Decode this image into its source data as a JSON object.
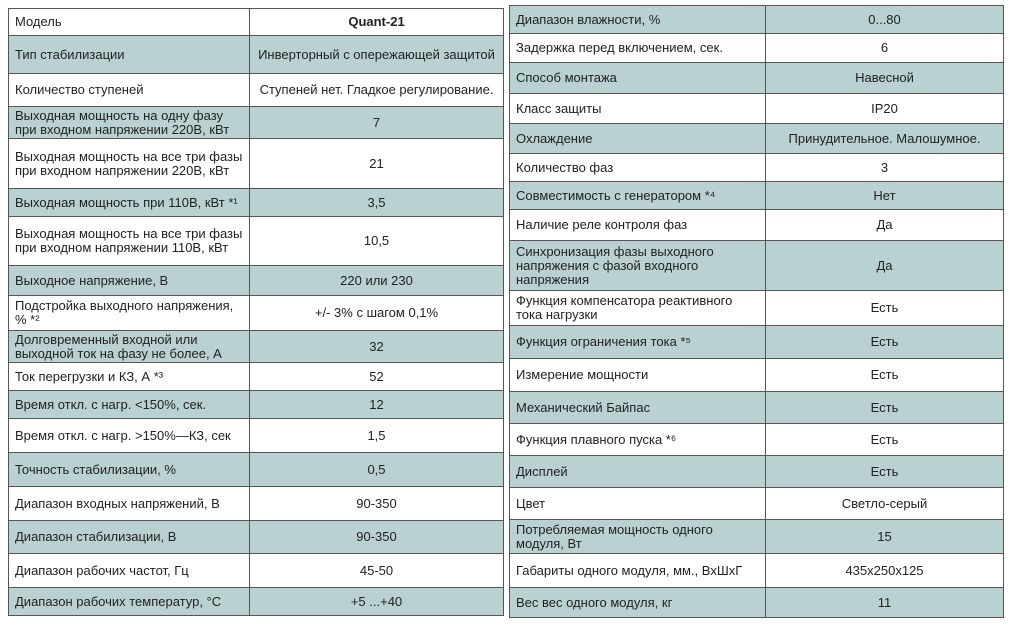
{
  "left": {
    "rows": [
      [
        "Модель",
        "Quant-21"
      ],
      [
        "Тип стабилизации",
        "Инверторный с опережающей защитой"
      ],
      [
        "Количество ступеней",
        "Ступеней нет. Гладкое регулирование."
      ],
      [
        "Выходная мощность на одну фазу при входном напряжении 220В, кВт",
        "7"
      ],
      [
        "Выходная мощность на все три фазы при входном напряжении 220В, кВт",
        "21"
      ],
      [
        "Выходная мощность при 110В, кВт *¹",
        "3,5"
      ],
      [
        "Выходная мощность на все три фазы при входном напряжении 110В, кВт",
        "10,5"
      ],
      [
        "Выходное напряжение, В",
        "220 или 230"
      ],
      [
        "Подстройка выходного напряжения, % *²",
        "+/- 3% с шагом 0,1%"
      ],
      [
        "Долговременный входной или выходной ток на фазу не более, А",
        "32"
      ],
      [
        "Ток перегрузки и КЗ, А *³",
        "52"
      ],
      [
        "Время откл. с нагр. <150%, сек.",
        "12"
      ],
      [
        "Время откл. с нагр. >150%—КЗ, сек",
        "1,5"
      ],
      [
        "Точность стабилизации, %",
        "0,5"
      ],
      [
        "Диапазон входных напряжений, В",
        "90-350"
      ],
      [
        "Диапазон стабилизации, В",
        "90-350"
      ],
      [
        "Диапазон рабочих частот, Гц",
        "45-50"
      ],
      [
        "Диапазон рабочих температур, °С",
        "+5 ...+40"
      ]
    ]
  },
  "right": {
    "rows": [
      [
        "Диапазон влажности, %",
        "0...80"
      ],
      [
        "Задержка перед включением, сек.",
        "6"
      ],
      [
        "Способ монтажа",
        "Навесной"
      ],
      [
        "Класс защиты",
        "IP20"
      ],
      [
        "Охлаждение",
        "Принудительное. Малошумное."
      ],
      [
        "Количество фаз",
        "3"
      ],
      [
        "Совместимость с генератором *⁴",
        "Нет"
      ],
      [
        "Наличие реле контроля фаз",
        "Да"
      ],
      [
        "Синхронизация фазы выходного напряжения с фазой входного напряжения",
        "Да"
      ],
      [
        "Функция компенсатора реактивного тока нагрузки",
        "Есть"
      ],
      [
        "Функция ограничения тока *⁵",
        "Есть"
      ],
      [
        "Измерение мощности",
        "Есть"
      ],
      [
        "Механический Байпас",
        "Есть"
      ],
      [
        "Функция плавного пуска *⁶",
        "Есть"
      ],
      [
        "Дисплей",
        "Есть"
      ],
      [
        "Цвет",
        "Светло-серый"
      ],
      [
        "Потребляемая мощность одного модуля, Вт",
        "15"
      ],
      [
        "Габариты одного модуля, мм., ВхШхГ",
        "435x250x125"
      ],
      [
        "Вес вес одного модуля, кг",
        "11"
      ]
    ]
  }
}
